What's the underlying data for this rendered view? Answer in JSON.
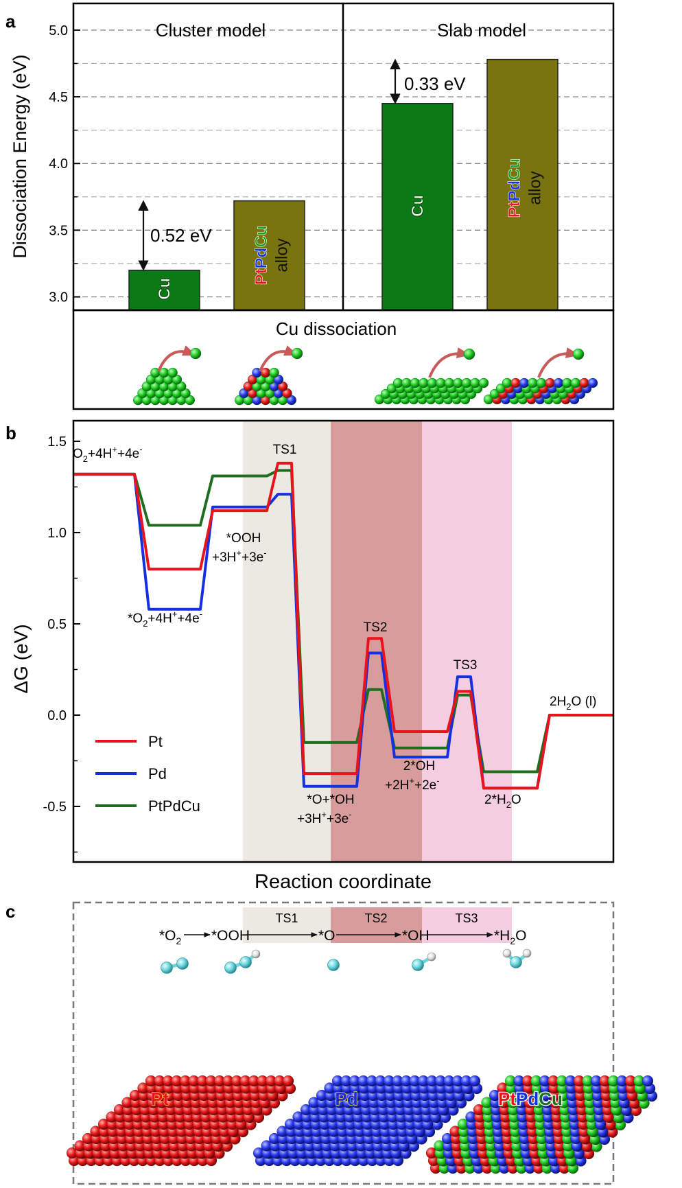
{
  "panels": {
    "a": {
      "letter": "a"
    },
    "b": {
      "letter": "b"
    },
    "c": {
      "letter": "c"
    }
  },
  "colors": {
    "cu_bar": "#0b7a16",
    "alloy_bar": "#7a7410",
    "pt": "#e8141c",
    "pd": "#1530e0",
    "ptpdcu": "#1e6e1e",
    "ts1_band": "#ece9e2",
    "ts2_band": "#d89c9c",
    "ts3_band": "#f5cde1",
    "o_atom": "#6fd6de",
    "cu_atom": "#22cc22"
  },
  "chart_data": [
    {
      "type": "bar",
      "panel": "a",
      "ylabel": "Dissociation Energy (eV)",
      "ylim": [
        2.9,
        5.2
      ],
      "yticks": [
        "3.0",
        "3.5",
        "4.0",
        "4.5",
        "5.0"
      ],
      "grid": "dashed horizontal",
      "groups": [
        {
          "title": "Cluster model",
          "bars": [
            {
              "label": "Cu",
              "value": 3.2,
              "color": "cu_bar"
            },
            {
              "label": "PtPdCu alloy",
              "value": 3.72,
              "color": "alloy_bar"
            }
          ],
          "annotation": "0.52 eV"
        },
        {
          "title": "Slab model",
          "bars": [
            {
              "label": "Cu",
              "value": 4.45,
              "color": "cu_bar"
            },
            {
              "label": "PtPdCu alloy",
              "value": 4.78,
              "color": "alloy_bar"
            }
          ],
          "annotation": "0.33 eV"
        }
      ],
      "bar_labels": {
        "cu": "Cu",
        "pt": "Pt",
        "pd": "Pd",
        "cu2": "Cu",
        "alloy": "alloy"
      },
      "subpanel_title": "Cu dissociation"
    },
    {
      "type": "line",
      "panel": "b",
      "xlabel": "Reaction coordinate",
      "ylabel": "ΔG (eV)",
      "ylim": [
        -0.78,
        1.6
      ],
      "yticks": [
        "-0.5",
        "0.0",
        "0.5",
        "1.0",
        "1.5"
      ],
      "legend_position": "bottom-left",
      "steps": [
        "O2+4H++4e-",
        "*O2+4H++4e-",
        "*OOH+3H++3e-",
        "TS1",
        "*O+*OH+3H++3e-",
        "TS2",
        "2*OH+2H++2e-",
        "TS3",
        "2*H2O",
        "2H2O (l)"
      ],
      "series": [
        {
          "name": "Pt",
          "color": "pt",
          "values": [
            1.32,
            0.8,
            1.12,
            1.38,
            -0.32,
            0.42,
            -0.09,
            0.13,
            -0.4,
            0.0
          ]
        },
        {
          "name": "Pd",
          "color": "pd",
          "values": [
            1.32,
            0.58,
            1.14,
            1.21,
            -0.39,
            0.34,
            -0.23,
            0.21,
            -0.4,
            0.0
          ]
        },
        {
          "name": "PtPdCu",
          "color": "ptpdcu",
          "values": [
            1.32,
            1.04,
            1.31,
            1.34,
            -0.15,
            0.14,
            -0.18,
            0.11,
            -0.31,
            0.0
          ]
        }
      ],
      "bands": [
        "TS1",
        "TS2",
        "TS3"
      ],
      "labels": {
        "start": {
          "main": "O",
          "sub": "2",
          "rest": "+4H",
          "sup1": "+",
          "rest2": "+4e",
          "sup2": "-"
        },
        "o2ads": {
          "main": "*O",
          "sub": "2",
          "rest": "+4H",
          "sup1": "+",
          "rest2": "+4e",
          "sup2": "-"
        },
        "ooh_1": "*OOH",
        "ooh_2": {
          "main": "+3H",
          "sup1": "+",
          "rest": "+3e",
          "sup2": "-"
        },
        "ts1": "TS1",
        "ts2": "TS2",
        "ts3": "TS3",
        "ooh_o_1": "*O+*OH",
        "ooh_o_2": {
          "main": "+3H",
          "sup1": "+",
          "rest": "+3e",
          "sup2": "-"
        },
        "oh_1": "2*OH",
        "oh_2": {
          "main": "+2H",
          "sup1": "+",
          "rest": "+2e",
          "sup2": "-"
        },
        "h2o_ads": {
          "main": "2*H",
          "sub": "2",
          "rest": "O"
        },
        "h2o_final": "2H2O (l)",
        "h2o_final_parts": {
          "a": "2H",
          "sub": "2",
          "b": "O (l)"
        }
      }
    }
  ],
  "panel_c": {
    "ts_labels": [
      "TS1",
      "TS2",
      "TS3"
    ],
    "path": {
      "o2": {
        "main": "*O",
        "sub": "2"
      },
      "ooh": "*OOH",
      "o": "*O",
      "oh": "*OH",
      "h2o": {
        "main": "*H",
        "sub": "2",
        "rest": "O"
      }
    },
    "surfaces": [
      {
        "name": "Pt",
        "color": "pt"
      },
      {
        "name": "Pd",
        "color": "pd"
      },
      {
        "name_parts": [
          "Pt",
          "Pd",
          "Cu"
        ],
        "color": "mixed"
      }
    ]
  }
}
